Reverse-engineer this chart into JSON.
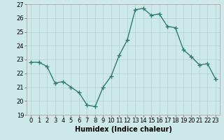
{
  "x": [
    0,
    1,
    2,
    3,
    4,
    5,
    6,
    7,
    8,
    9,
    10,
    11,
    12,
    13,
    14,
    15,
    16,
    17,
    18,
    19,
    20,
    21,
    22,
    23
  ],
  "y": [
    22.8,
    22.8,
    22.5,
    21.3,
    21.4,
    21.0,
    20.6,
    19.7,
    19.6,
    21.0,
    21.8,
    23.3,
    24.4,
    26.6,
    26.7,
    26.2,
    26.3,
    25.4,
    25.3,
    23.7,
    23.2,
    22.6,
    22.7,
    21.6
  ],
  "line_color": "#2e7d6e",
  "marker": "+",
  "markersize": 4,
  "linewidth": 1.0,
  "bg_color": "#cce8e8",
  "grid_color": "#b0d0d0",
  "xlabel": "Humidex (Indice chaleur)",
  "xlabel_fontsize": 7,
  "tick_fontsize": 6,
  "ylim": [
    19,
    27
  ],
  "xlim": [
    -0.5,
    23.5
  ],
  "yticks": [
    19,
    20,
    21,
    22,
    23,
    24,
    25,
    26,
    27
  ],
  "xticks": [
    0,
    1,
    2,
    3,
    4,
    5,
    6,
    7,
    8,
    9,
    10,
    11,
    12,
    13,
    14,
    15,
    16,
    17,
    18,
    19,
    20,
    21,
    22,
    23
  ]
}
